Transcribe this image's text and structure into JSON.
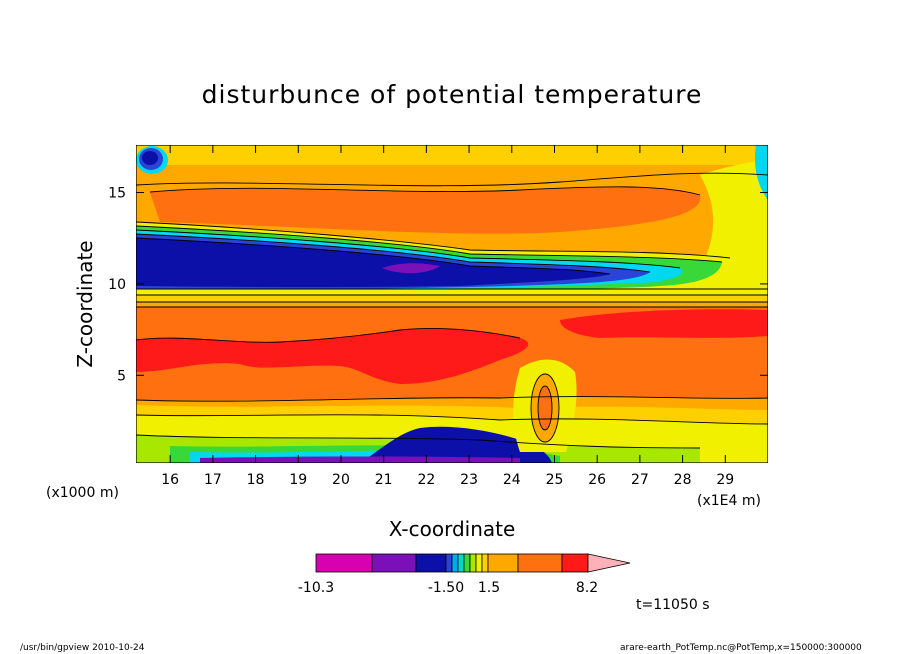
{
  "chart_data": {
    "type": "heatmap",
    "title": "disturbunce of potential temperature",
    "xlabel": "X-coordinate",
    "ylabel": "Z-coordinate",
    "x_unit_label": "(x1E4 m)",
    "y_unit_label": "(x1000 m)",
    "xlim": [
      15.2,
      30.0
    ],
    "ylim": [
      0.2,
      17.6
    ],
    "x_ticks": [
      16,
      17,
      18,
      19,
      20,
      21,
      22,
      23,
      24,
      25,
      26,
      27,
      28,
      29
    ],
    "y_ticks": [
      5,
      10,
      15
    ],
    "x_tick_labels": [
      "16",
      "17",
      "18",
      "19",
      "20",
      "21",
      "22",
      "23",
      "24",
      "25",
      "26",
      "27",
      "28",
      "29"
    ],
    "y_tick_labels": [
      "5",
      "10",
      "15"
    ],
    "colorbar": {
      "min_label": "-10.3",
      "label_neg": "-1.50",
      "label_pos": "1.5",
      "max_label": "8.2",
      "colors": [
        "#d800b0",
        "#7c10b8",
        "#0c10a8",
        "#2a44d8",
        "#00a8f0",
        "#00d8c8",
        "#38d838",
        "#a8e800",
        "#f0f000",
        "#ffd000",
        "#ffa800",
        "#ff7010",
        "#ff1a1a",
        "#ff6878",
        "#ffb0b8"
      ]
    },
    "time_label": "t=11050 s"
  },
  "footer": {
    "left": "/usr/bin/gpview   2010-10-24",
    "right": "arare-earth_PotTemp.nc@PotTemp,x=150000:300000"
  },
  "colors": {
    "magenta": "#d800b0",
    "purple": "#7c10b8",
    "navy": "#0c10a8",
    "blue": "#2a44d8",
    "cyan": "#00d8f0",
    "green": "#38d838",
    "yellowgreen": "#a8e800",
    "yellow": "#f0f000",
    "lightorange": "#ffd000",
    "orange": "#ffa800",
    "deeporange": "#ff7010",
    "red": "#ff1a1a",
    "pink": "#ff6878"
  }
}
